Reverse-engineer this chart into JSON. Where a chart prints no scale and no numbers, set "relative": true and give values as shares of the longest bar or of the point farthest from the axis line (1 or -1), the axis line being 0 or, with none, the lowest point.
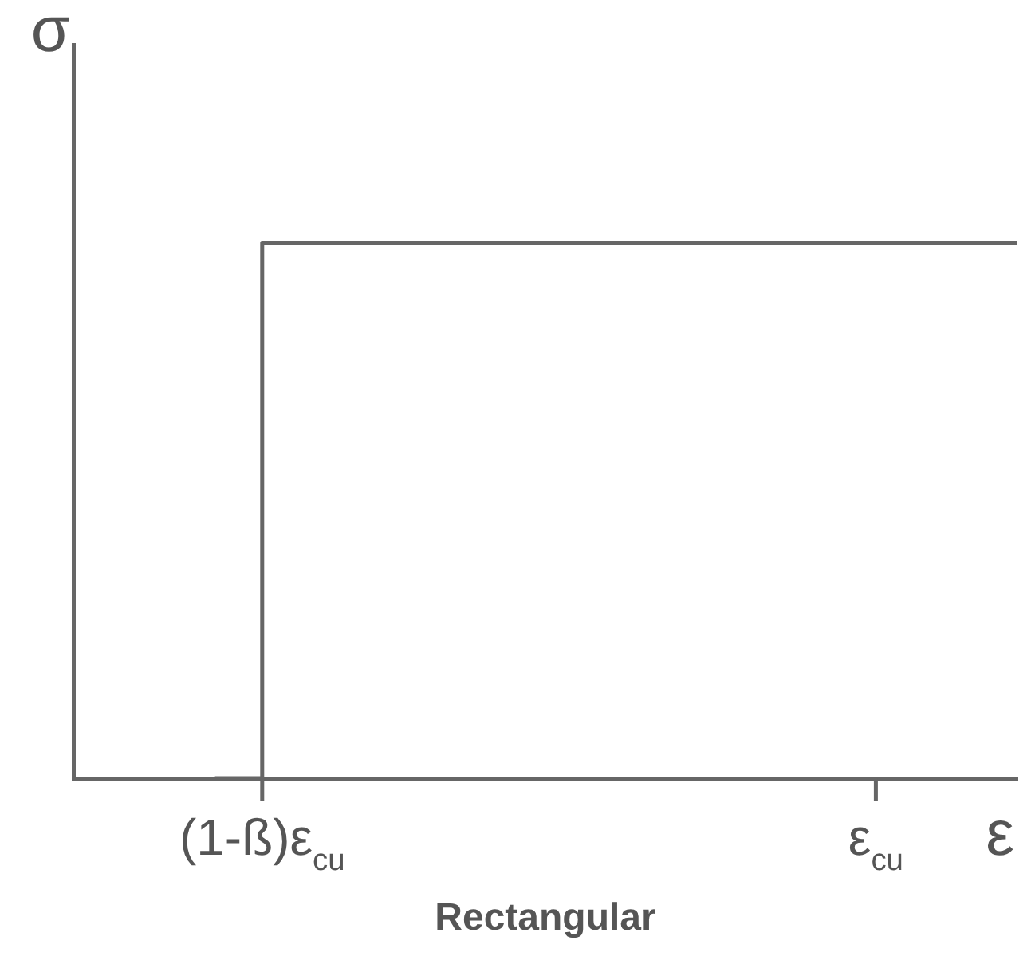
{
  "chart_data": {
    "type": "step",
    "relative": true,
    "ylabel": "σ",
    "xlabel": "ε",
    "annotations": [
      "Rectangular"
    ],
    "categories": [
      null,
      null,
      null,
      null,
      "(1-ß)ε$_{cu}$",
      null,
      null,
      null,
      null,
      null,
      null,
      null,
      null,
      null,
      null,
      null,
      null,
      "ε$_{cu}$",
      null,
      null,
      null
    ],
    "series": [
      {
        "color": "#666666",
        "values": [
          null,
          null,
          null,
          0,
          1,
          1,
          1,
          1,
          1,
          1,
          1,
          1,
          1,
          1,
          1,
          1,
          1,
          1,
          1,
          1,
          1
        ]
      }
    ],
    "grid": false,
    "legend": false,
    "marker": "none",
    "line_style": "solid"
  }
}
